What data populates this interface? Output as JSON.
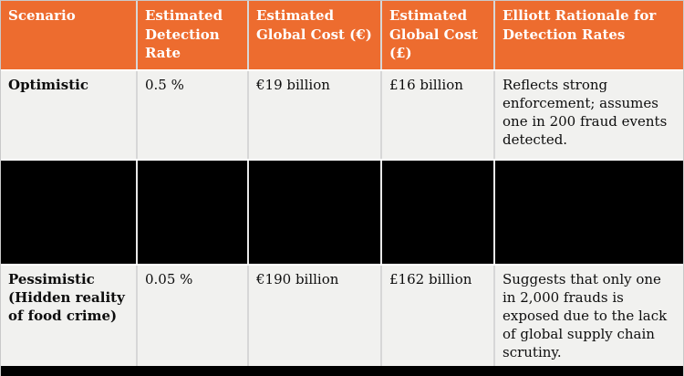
{
  "meta": {
    "accent_color": "#ED6C2F",
    "header_text_color": "#FFFFFF",
    "row_background": "#F1F1EF",
    "redaction_color": "#000000",
    "bottom_border_color": "#000000"
  },
  "table": {
    "columns": [
      {
        "label": "Scenario"
      },
      {
        "label": "Estimated Detection Rate"
      },
      {
        "label": "Estimated Global Cost (€)"
      },
      {
        "label": "Estimated Global Cost (£)"
      },
      {
        "label": "Elliott Rationale for Detection Rates"
      }
    ],
    "rows": [
      {
        "scenario": "Optimistic",
        "detection_rate": "0.5 %",
        "cost_eur": "€19 billion",
        "cost_gbp": "£16 billion",
        "rationale": "Reflects strong enforcement; assumes one in 200 fraud events detected.",
        "redacted": false
      },
      {
        "scenario": "",
        "detection_rate": "",
        "cost_eur": "",
        "cost_gbp": "",
        "rationale": "",
        "redacted": true
      },
      {
        "scenario": "Pessimistic (Hidden reality of food crime)",
        "detection_rate": "0.05 %",
        "cost_eur": "€190 billion",
        "cost_gbp": "£162 billion",
        "rationale": "Suggests that only one in 2,000 frauds is exposed due to the lack of global supply chain scrutiny.",
        "redacted": false
      }
    ]
  }
}
